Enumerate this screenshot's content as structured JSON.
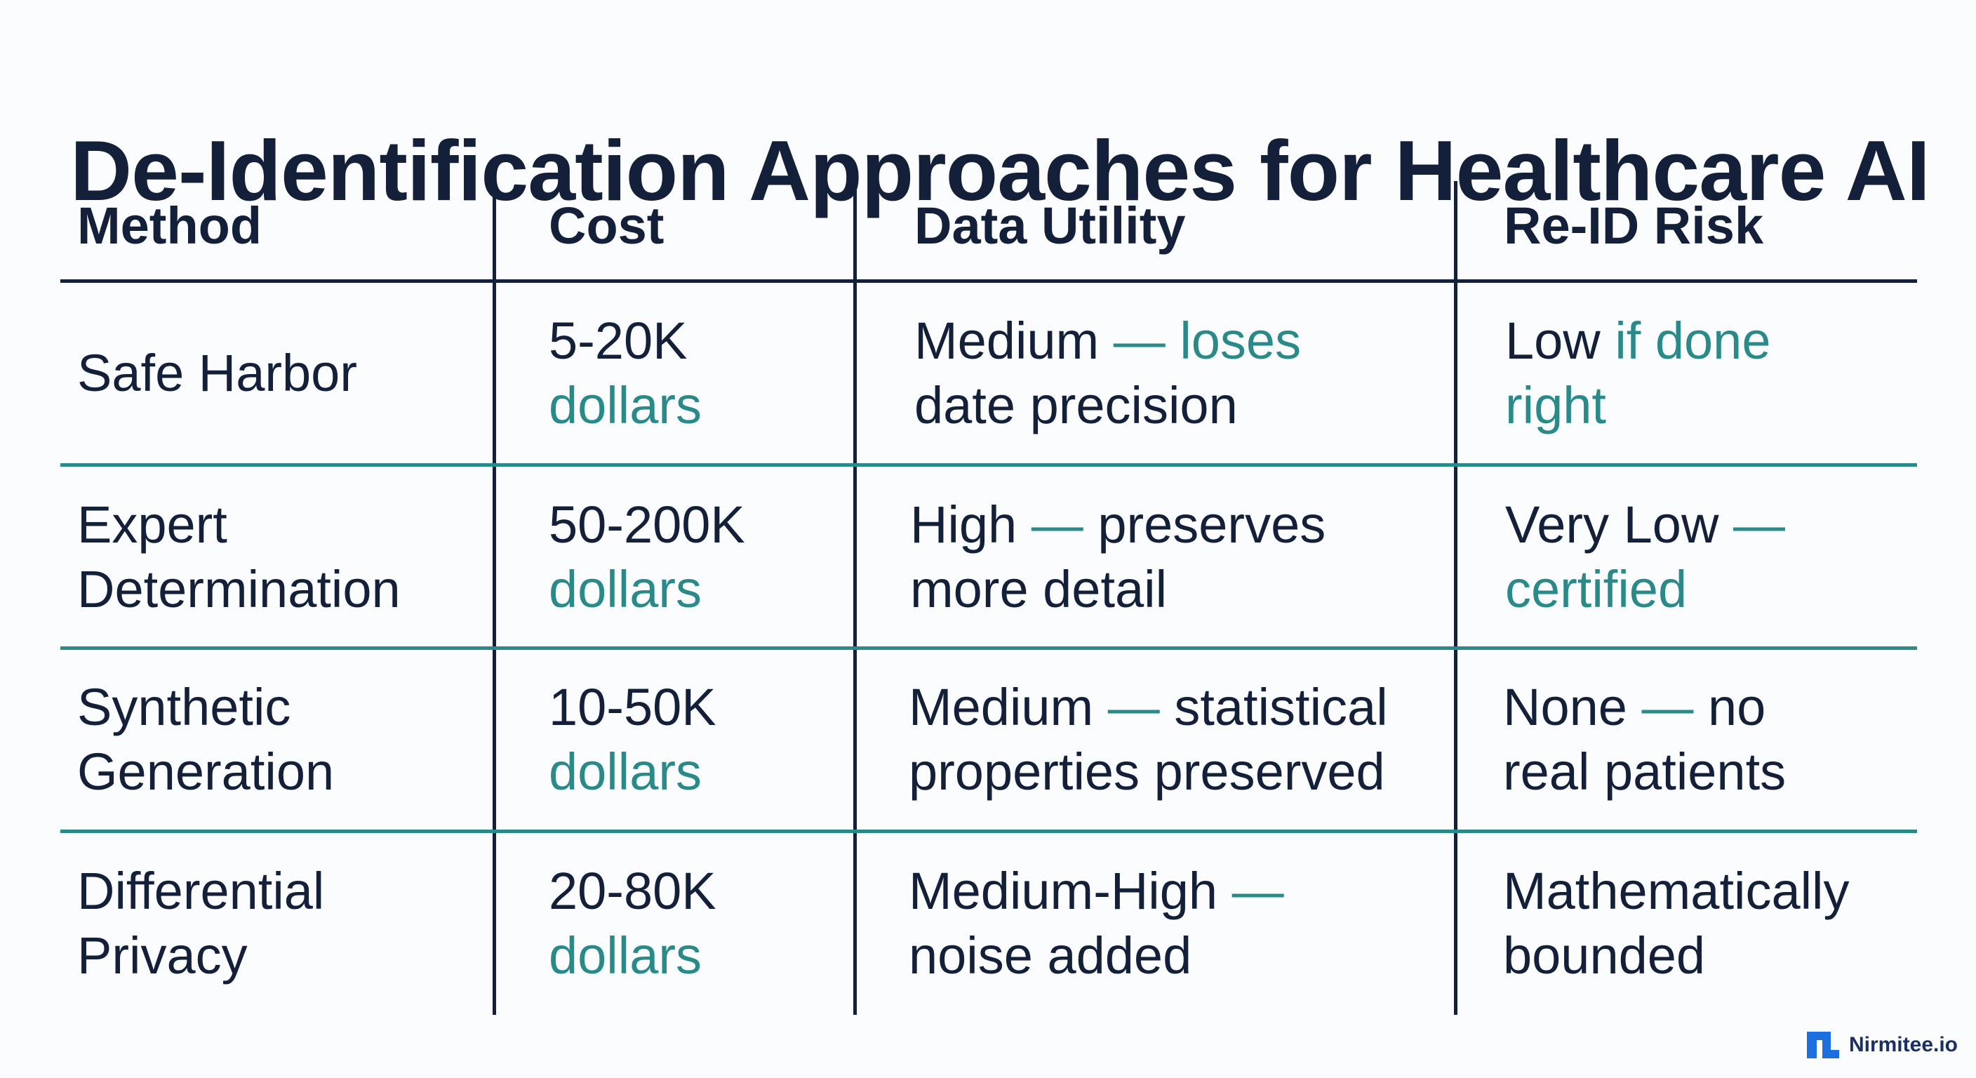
{
  "title": "De-Identification Approaches for Healthcare AI",
  "headers": {
    "method": "Method",
    "cost": "Cost",
    "utility": "Data Utility",
    "risk": "Re-ID Risk"
  },
  "rows": [
    {
      "method": [
        "Safe Harbor"
      ],
      "cost": {
        "value": "5-20K",
        "unit": "dollars"
      },
      "utility": {
        "l1a": "Medium ",
        "l1b": "— loses",
        "l2a": "date precision",
        "l2b": ""
      },
      "risk": {
        "l1a": "Low ",
        "l1b": "if done",
        "l2a": "",
        "l2b": "right"
      }
    },
    {
      "method": [
        "Expert",
        "Determination"
      ],
      "cost": {
        "value": "50-200K",
        "unit": "dollars"
      },
      "utility": {
        "l1a": "High ",
        "l1b": "— ",
        "l1c": "preserves",
        "l2a": "more detail"
      },
      "risk": {
        "l1a": "Very Low ",
        "l1b": "—",
        "l2b": "certified"
      }
    },
    {
      "method": [
        "Synthetic",
        "Generation"
      ],
      "cost": {
        "value": "10-50K",
        "unit": "dollars"
      },
      "utility": {
        "l1a": "Medium ",
        "l1b": "— ",
        "l1c": "statistical",
        "l2a": "properties preserved"
      },
      "risk": {
        "l1a": "None ",
        "l1b": "— ",
        "l1c": "no",
        "l2a": "real patients"
      }
    },
    {
      "method": [
        "Differential",
        "Privacy"
      ],
      "cost": {
        "value": "20-80K",
        "unit": "dollars"
      },
      "utility": {
        "l1a": "Medium-High ",
        "l1b": "—",
        "l2a": "noise added"
      },
      "risk": {
        "l1a": "Mathematically",
        "l2a": "bounded"
      }
    }
  ],
  "brand": {
    "name": "Nirmitee.io",
    "icon": "nirmitee-logo-icon"
  },
  "colors": {
    "text": "#14203a",
    "accent": "#2a8a8a",
    "background": "#fbfcfd",
    "brand": "#1d6fe0"
  }
}
